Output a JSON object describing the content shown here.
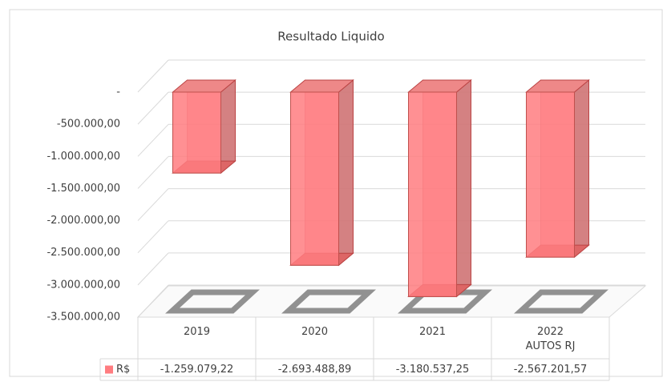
{
  "chart_data": {
    "type": "bar3d",
    "title": "Resultado Liquido",
    "categories": [
      "2019",
      "2020",
      "2021",
      "2022\nAUTOS RJ"
    ],
    "series": [
      {
        "name": "R$",
        "color": "#ff7c80",
        "values": [
          -1259079.22,
          -2693488.89,
          -3180537.25,
          -2567201.57
        ],
        "value_labels": [
          "-1.259.079,22",
          "-2.693.488,89",
          "-3.180.537,25",
          "-2.567.201,57"
        ]
      }
    ],
    "ylim": [
      -3500000,
      0
    ],
    "yticks": [
      {
        "value": 0,
        "label": "-"
      },
      {
        "value": -500000,
        "label": "-500.000,00"
      },
      {
        "value": -1000000,
        "label": "-1.000.000,00"
      },
      {
        "value": -1500000,
        "label": "-1.500.000,00"
      },
      {
        "value": -2000000,
        "label": "-2.000.000,00"
      },
      {
        "value": -2500000,
        "label": "-2.500.000,00"
      },
      {
        "value": -3000000,
        "label": "-3.000.000,00"
      },
      {
        "value": -3500000,
        "label": "-3.500.000,00"
      }
    ],
    "grid": true
  }
}
